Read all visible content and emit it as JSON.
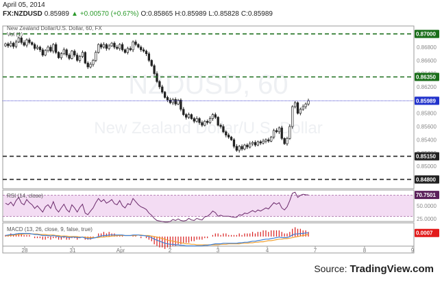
{
  "header": {
    "date": "April 05, 2014",
    "symbol": "FX:NZDUSD",
    "last": "0.85989",
    "change_icon": "triangle-up-icon",
    "change": "+0.00570 (+0.67%)",
    "open": "O:0.85865",
    "high": "H:0.85989",
    "low": "L:0.85828",
    "close": "C:0.85989"
  },
  "source": {
    "label": "Source:",
    "brand": "TradingView.com"
  },
  "colors": {
    "up": "#2b9a2b",
    "candle_up": "#ffffff",
    "candle_down": "#222222",
    "level_green": "#1a6e1a",
    "level_dark": "#222222",
    "price_line": "#3333cc",
    "price_badge": "#2233cc",
    "rsi_line": "#6b2a6b",
    "rsi_band": "#f3dcf3",
    "macd_line": "#3c7fd6",
    "signal_line": "#f0a030",
    "hist": "#d81b1b"
  },
  "chart_data": [
    {
      "type": "candlestick",
      "title": "New Zealand Dollar/U.S. Dollar, 60, FX",
      "volume_label": "Vol (1)",
      "watermark": "NZDUSD, 60",
      "watermark_sub": "New Zealand Dollar/U.S. Dollar",
      "ylim": [
        0.8466,
        0.8712
      ],
      "y_ticks": [
        "0.86800",
        "0.86600",
        "0.86400",
        "0.86200",
        "0.85800",
        "0.85600",
        "0.85400",
        "0.85200",
        "0.85000"
      ],
      "x_ticks": [
        "28",
        "31",
        "Apr",
        "2",
        "3",
        "4",
        "7",
        "8",
        "9"
      ],
      "levels": [
        {
          "value": 0.87,
          "label": "0.87000",
          "color": "#1a6e1a"
        },
        {
          "value": 0.8635,
          "label": "0.86350",
          "color": "#1a6e1a"
        },
        {
          "value": 0.8515,
          "label": "0.85150",
          "color": "#222222"
        },
        {
          "value": 0.848,
          "label": "0.84800",
          "color": "#222222"
        }
      ],
      "last_price": {
        "value": 0.85989,
        "label": "0.85989"
      },
      "close_series": [
        0.8685,
        0.8682,
        0.8686,
        0.8681,
        0.8688,
        0.8694,
        0.8687,
        0.8683,
        0.8691,
        0.8687,
        0.8684,
        0.8678,
        0.868,
        0.8676,
        0.8668,
        0.8675,
        0.868,
        0.8674,
        0.8684,
        0.8672,
        0.8664,
        0.867,
        0.8676,
        0.8668,
        0.8663,
        0.8674,
        0.8668,
        0.866,
        0.8666,
        0.8672,
        0.8656,
        0.865,
        0.8654,
        0.866,
        0.8672,
        0.8684,
        0.868,
        0.8684,
        0.8678,
        0.8682,
        0.8686,
        0.868,
        0.8678,
        0.8684,
        0.8676,
        0.8672,
        0.8678,
        0.8676,
        0.8688,
        0.8684,
        0.868,
        0.8676,
        0.8674,
        0.867,
        0.866,
        0.8652,
        0.864,
        0.8628,
        0.862,
        0.8612,
        0.8604,
        0.86,
        0.8596,
        0.8601,
        0.8594,
        0.86,
        0.8586,
        0.8578,
        0.8574,
        0.8578,
        0.8572,
        0.8568,
        0.8572,
        0.8566,
        0.8562,
        0.8568,
        0.8566,
        0.8572,
        0.8578,
        0.8574,
        0.8562,
        0.856,
        0.8552,
        0.8547,
        0.8544,
        0.854,
        0.853,
        0.8524,
        0.853,
        0.8526,
        0.8532,
        0.8529,
        0.8534,
        0.8536,
        0.8532,
        0.8537,
        0.8535,
        0.8538,
        0.854,
        0.8538,
        0.8544,
        0.8554,
        0.8552,
        0.8558,
        0.8542,
        0.8534,
        0.8542,
        0.856,
        0.859,
        0.8596,
        0.858,
        0.8586,
        0.859,
        0.8594,
        0.8599
      ]
    },
    {
      "type": "line",
      "title": "RSI (14, close)",
      "ylim": [
        20,
        80
      ],
      "y_ticks": [
        "50.0000",
        "25.0000"
      ],
      "last": {
        "value": 70.7501,
        "label": "70.7501"
      },
      "bands": [
        70,
        30
      ],
      "values": [
        55,
        52,
        57,
        50,
        60,
        66,
        55,
        52,
        62,
        56,
        52,
        45,
        50,
        44,
        38,
        48,
        52,
        45,
        58,
        44,
        38,
        46,
        53,
        43,
        38,
        52,
        46,
        38,
        47,
        53,
        36,
        33,
        40,
        46,
        56,
        64,
        58,
        62,
        55,
        58,
        62,
        54,
        52,
        60,
        50,
        46,
        54,
        52,
        64,
        58,
        52,
        48,
        46,
        43,
        36,
        32,
        26,
        22,
        21,
        20,
        19,
        19,
        20,
        24,
        22,
        25,
        22,
        21,
        22,
        26,
        23,
        22,
        26,
        24,
        23,
        29,
        30,
        34,
        40,
        37,
        30,
        32,
        30,
        30,
        30,
        29,
        28,
        28,
        33,
        32,
        36,
        35,
        38,
        41,
        38,
        42,
        40,
        43,
        46,
        44,
        50,
        56,
        53,
        56,
        46,
        42,
        48,
        60,
        74,
        76,
        66,
        70,
        72,
        71,
        70.75
      ]
    },
    {
      "type": "line",
      "title": "MACD (13, 26, close, 9, false, true)",
      "last": {
        "value": 0.0007,
        "label": "0.0007"
      },
      "series": [
        {
          "name": "MACD",
          "values": [
            0.0002,
            0.0003,
            0.0004,
            0.0004,
            0.0005,
            0.0006,
            0.0006,
            0.0006,
            0.0006,
            0.0006,
            0.0005,
            0.0004,
            0.0004,
            0.0003,
            0.0002,
            0.0002,
            0.0002,
            0.0001,
            0.0002,
            0.0001,
            0.0,
            -0.0001,
            0.0,
            -0.0001,
            -0.0002,
            -0.0001,
            -0.0001,
            -0.0002,
            -0.0002,
            -0.0001,
            -0.0003,
            -0.0004,
            -0.0004,
            -0.0003,
            -0.0002,
            0.0,
            0.0001,
            0.0002,
            0.0002,
            0.0003,
            0.0003,
            0.0003,
            0.0003,
            0.0003,
            0.0003,
            0.0002,
            0.0002,
            0.0002,
            0.0003,
            0.0003,
            0.0003,
            0.0002,
            0.0002,
            0.0001,
            0.0,
            -0.0002,
            -0.0005,
            -0.0007,
            -0.0009,
            -0.0011,
            -0.0013,
            -0.0014,
            -0.0015,
            -0.0015,
            -0.0016,
            -0.0016,
            -0.0017,
            -0.0017,
            -0.0018,
            -0.0018,
            -0.0018,
            -0.0018,
            -0.0018,
            -0.0018,
            -0.0018,
            -0.0017,
            -0.0017,
            -0.0016,
            -0.0015,
            -0.0014,
            -0.0014,
            -0.0014,
            -0.0013,
            -0.0013,
            -0.0013,
            -0.0013,
            -0.0013,
            -0.0013,
            -0.0012,
            -0.0012,
            -0.0011,
            -0.0011,
            -0.001,
            -0.0009,
            -0.0009,
            -0.0008,
            -0.0007,
            -0.0006,
            -0.0005,
            -0.0005,
            -0.0004,
            -0.0003,
            -0.0002,
            -0.0001,
            -0.0002,
            -0.0002,
            -0.0002,
            0.0,
            0.0003,
            0.0005,
            0.0005,
            0.0006,
            0.0006,
            0.0007,
            0.0007
          ]
        },
        {
          "name": "Signal",
          "values": [
            0.0001,
            0.0002,
            0.0002,
            0.0003,
            0.0003,
            0.0004,
            0.0004,
            0.0005,
            0.0005,
            0.0005,
            0.0005,
            0.0005,
            0.0005,
            0.0004,
            0.0004,
            0.0004,
            0.0003,
            0.0003,
            0.0003,
            0.0002,
            0.0002,
            0.0001,
            0.0001,
            0.0001,
            0.0,
            0.0,
            0.0,
            0.0,
            -0.0001,
            -0.0001,
            -0.0001,
            -0.0002,
            -0.0002,
            -0.0002,
            -0.0002,
            -0.0002,
            -0.0001,
            -0.0001,
            0.0,
            0.0,
            0.0001,
            0.0001,
            0.0002,
            0.0002,
            0.0002,
            0.0002,
            0.0002,
            0.0002,
            0.0002,
            0.0002,
            0.0003,
            0.0003,
            0.0002,
            0.0002,
            0.0002,
            0.0001,
            0.0,
            -0.0001,
            -0.0002,
            -0.0004,
            -0.0005,
            -0.0007,
            -0.0008,
            -0.0009,
            -0.001,
            -0.0011,
            -0.0012,
            -0.0013,
            -0.0014,
            -0.0014,
            -0.0015,
            -0.0015,
            -0.0016,
            -0.0016,
            -0.0016,
            -0.0016,
            -0.0016,
            -0.0016,
            -0.0016,
            -0.0016,
            -0.0016,
            -0.0015,
            -0.0015,
            -0.0015,
            -0.0014,
            -0.0014,
            -0.0014,
            -0.0014,
            -0.0014,
            -0.0013,
            -0.0013,
            -0.0013,
            -0.0012,
            -0.0012,
            -0.0011,
            -0.0011,
            -0.001,
            -0.001,
            -0.0009,
            -0.0008,
            -0.0008,
            -0.0007,
            -0.0006,
            -0.0005,
            -0.0005,
            -0.0004,
            -0.0004,
            -0.0003,
            -0.0002,
            -0.0001,
            0.0,
            0.0001,
            0.0002,
            0.0003,
            0.0004
          ]
        }
      ]
    }
  ]
}
